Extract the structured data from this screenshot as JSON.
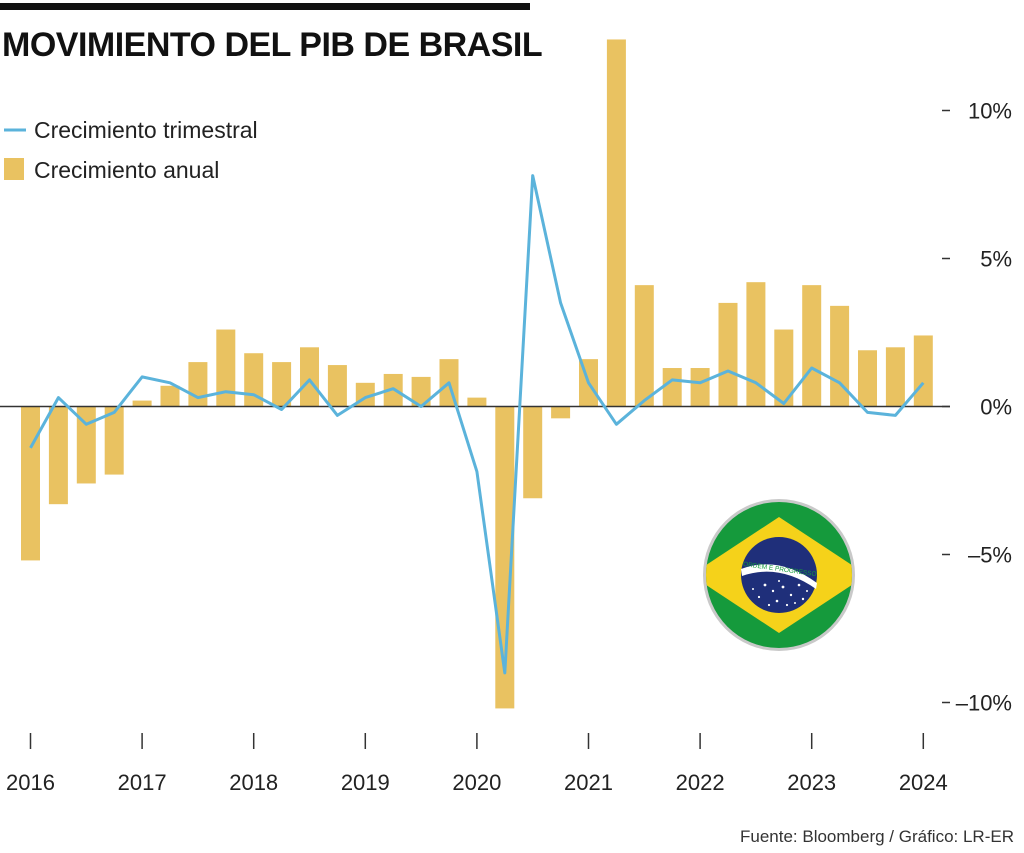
{
  "title": "MOVIMIENTO DEL PIB DE BRASIL",
  "source": "Fuente: Bloomberg / Gráfico: LR-ER",
  "flag_icon": "brazil-flag-icon",
  "flag_motto": "ORDEM E PROGRESSO",
  "colors": {
    "bar": "#E9C261",
    "line": "#5BB3DB",
    "axis": "#333333",
    "text": "#222222"
  },
  "chart_data": {
    "type": "bar",
    "legend": {
      "placement": "top-left",
      "entries": [
        "Crecimiento trimestral",
        "Crecimiento anual"
      ]
    },
    "x_ticks": [
      "2016",
      "2017",
      "2018",
      "2019",
      "2020",
      "2021",
      "2022",
      "2023",
      "2024"
    ],
    "y_ticks": [
      {
        "value": 10,
        "label": "10%"
      },
      {
        "value": 5,
        "label": "5%"
      },
      {
        "value": 0,
        "label": "0%"
      },
      {
        "value": -5,
        "label": "–5%"
      },
      {
        "value": -10,
        "label": "–10%"
      }
    ],
    "ylim": [
      -11,
      12.5
    ],
    "grid": false,
    "categories": [
      "2016 T1",
      "2016 T2",
      "2016 T3",
      "2016 T4",
      "2017 T1",
      "2017 T2",
      "2017 T3",
      "2017 T4",
      "2018 T1",
      "2018 T2",
      "2018 T3",
      "2018 T4",
      "2019 T1",
      "2019 T2",
      "2019 T3",
      "2019 T4",
      "2020 T1",
      "2020 T2",
      "2020 T3",
      "2020 T4",
      "2021 T1",
      "2021 T2",
      "2021 T3",
      "2021 T4",
      "2022 T1",
      "2022 T2",
      "2022 T3",
      "2022 T4",
      "2023 T1",
      "2023 T2",
      "2023 T3",
      "2023 T4",
      "2024 T1"
    ],
    "series": [
      {
        "name": "Crecimiento anual",
        "kind": "bar",
        "values": [
          -5.2,
          -3.3,
          -2.6,
          -2.3,
          0.2,
          0.7,
          1.5,
          2.6,
          1.8,
          1.5,
          2.0,
          1.4,
          0.8,
          1.1,
          1.0,
          1.6,
          0.3,
          -10.2,
          -3.1,
          -0.4,
          1.6,
          12.4,
          4.1,
          1.3,
          1.3,
          3.5,
          4.2,
          2.6,
          4.1,
          3.4,
          1.9,
          2.0,
          2.4
        ]
      },
      {
        "name": "Crecimiento trimestral",
        "kind": "line",
        "values": [
          -1.4,
          0.3,
          -0.6,
          -0.2,
          1.0,
          0.8,
          0.3,
          0.5,
          0.4,
          -0.1,
          0.9,
          -0.3,
          0.3,
          0.6,
          0.0,
          0.8,
          -2.2,
          -9.0,
          7.8,
          3.5,
          0.8,
          -0.6,
          0.2,
          0.9,
          0.8,
          1.2,
          0.8,
          0.1,
          1.3,
          0.8,
          -0.2,
          -0.3,
          0.8
        ]
      }
    ]
  }
}
